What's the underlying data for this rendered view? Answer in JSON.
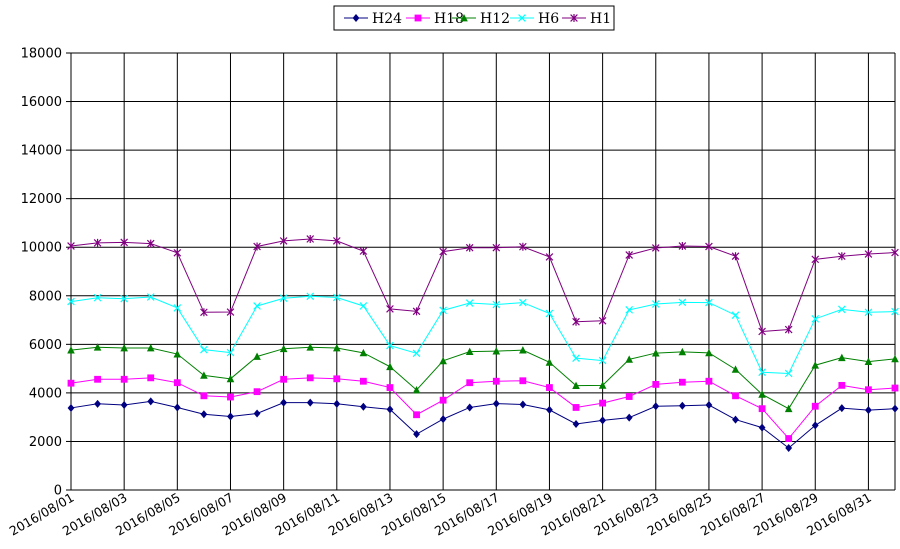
{
  "chart_data": {
    "type": "line",
    "title": "",
    "xlabel": "",
    "ylabel": "",
    "ylim": [
      0,
      18000
    ],
    "yticks": [
      "0",
      "2000",
      "4000",
      "6000",
      "8000",
      "10000",
      "12000",
      "14000",
      "16000",
      "18000"
    ],
    "grid": true,
    "legend_position": "top-center",
    "x": [
      "2016/08/01",
      "2016/08/02",
      "2016/08/03",
      "2016/08/04",
      "2016/08/05",
      "2016/08/06",
      "2016/08/07",
      "2016/08/08",
      "2016/08/09",
      "2016/08/10",
      "2016/08/11",
      "2016/08/12",
      "2016/08/13",
      "2016/08/14",
      "2016/08/15",
      "2016/08/16",
      "2016/08/17",
      "2016/08/18",
      "2016/08/19",
      "2016/08/20",
      "2016/08/21",
      "2016/08/22",
      "2016/08/23",
      "2016/08/24",
      "2016/08/25",
      "2016/08/26",
      "2016/08/27",
      "2016/08/28",
      "2016/08/29",
      "2016/08/30",
      "2016/08/31",
      "2016/09/01"
    ],
    "xtick_labels": [
      "2016/08/01",
      "2016/08/03",
      "2016/08/05",
      "2016/08/07",
      "2016/08/09",
      "2016/08/11",
      "2016/08/13",
      "2016/08/15",
      "2016/08/17",
      "2016/08/19",
      "2016/08/21",
      "2016/08/23",
      "2016/08/25",
      "2016/08/27",
      "2016/08/29",
      "2016/08/31"
    ],
    "series": [
      {
        "name": "H24",
        "color": "#000080",
        "marker": "diamond",
        "values": [
          3380,
          3550,
          3500,
          3650,
          3400,
          3120,
          3030,
          3150,
          3600,
          3600,
          3550,
          3430,
          3320,
          2300,
          2920,
          3400,
          3560,
          3520,
          3300,
          2720,
          2870,
          2980,
          3450,
          3470,
          3500,
          2900,
          2570,
          1730,
          2660,
          3370,
          3290,
          3350
        ]
      },
      {
        "name": "H18",
        "color": "#FF00FF",
        "marker": "square",
        "values": [
          4400,
          4560,
          4560,
          4620,
          4420,
          3880,
          3830,
          4050,
          4560,
          4620,
          4580,
          4480,
          4220,
          3100,
          3700,
          4420,
          4480,
          4500,
          4220,
          3400,
          3580,
          3850,
          4350,
          4440,
          4480,
          3880,
          3350,
          2120,
          3450,
          4310,
          4130,
          4200
        ]
      },
      {
        "name": "H12",
        "color": "#008000",
        "marker": "triangle",
        "values": [
          5760,
          5880,
          5850,
          5850,
          5600,
          4720,
          4580,
          5500,
          5820,
          5880,
          5850,
          5650,
          5080,
          4120,
          5320,
          5700,
          5720,
          5760,
          5260,
          4300,
          4310,
          5380,
          5640,
          5690,
          5650,
          4970,
          3940,
          3350,
          5140,
          5450,
          5290,
          5400
        ]
      },
      {
        "name": "H6",
        "color": "#00FFFF",
        "marker": "x",
        "values": [
          7760,
          7920,
          7880,
          7950,
          7500,
          5780,
          5660,
          7580,
          7900,
          7980,
          7930,
          7580,
          5950,
          5630,
          7400,
          7700,
          7640,
          7720,
          7270,
          5430,
          5330,
          7420,
          7660,
          7730,
          7720,
          7200,
          4850,
          4800,
          7050,
          7440,
          7320,
          7350
        ]
      },
      {
        "name": "H1",
        "color": "#800080",
        "marker": "star",
        "values": [
          10050,
          10180,
          10200,
          10150,
          9770,
          7320,
          7330,
          10030,
          10260,
          10340,
          10260,
          9840,
          7460,
          7360,
          9820,
          9980,
          9980,
          10020,
          9600,
          6930,
          6970,
          9680,
          9970,
          10050,
          10030,
          9630,
          6530,
          6610,
          9500,
          9630,
          9720,
          9780
        ]
      }
    ]
  }
}
